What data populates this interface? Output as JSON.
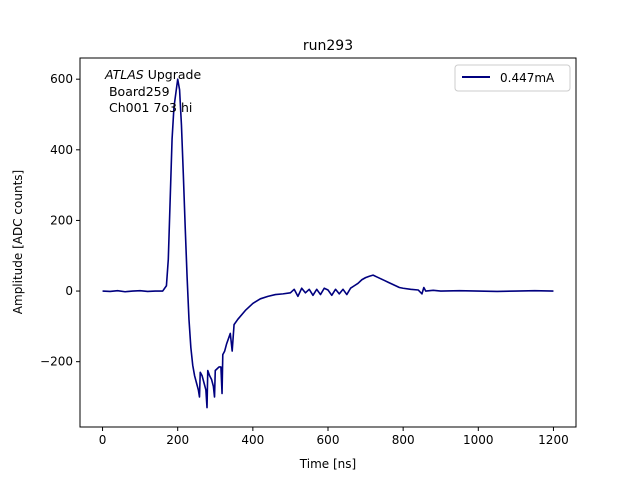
{
  "chart_data": {
    "type": "line",
    "title": "run293",
    "xlabel": "Time [ns]",
    "ylabel": "Amplitude [ADC counts]",
    "xlim": [
      -60,
      1260
    ],
    "ylim": [
      -385,
      660
    ],
    "xticks": [
      0,
      200,
      400,
      600,
      800,
      1000,
      1200
    ],
    "yticks": [
      -200,
      0,
      200,
      400,
      600
    ],
    "ytick_labels": [
      "−200",
      "0",
      "200",
      "400",
      "600"
    ],
    "grid": false,
    "legend_position": "top-right",
    "annotation": {
      "line1_italic": "ATLAS",
      "line1_rest": " Upgrade",
      "line2": " Board259",
      "line3": " Ch001 7o3 hi"
    },
    "series": [
      {
        "name": "0.447mA",
        "color": "#00007f",
        "x": [
          0,
          20,
          40,
          60,
          80,
          100,
          120,
          140,
          160,
          170,
          175,
          180,
          185,
          190,
          195,
          200,
          205,
          210,
          215,
          220,
          225,
          230,
          235,
          240,
          245,
          250,
          255,
          258,
          260,
          265,
          270,
          275,
          278,
          280,
          285,
          290,
          295,
          298,
          300,
          305,
          310,
          315,
          318,
          320,
          325,
          330,
          340,
          345,
          350,
          360,
          380,
          400,
          420,
          440,
          460,
          480,
          500,
          510,
          520,
          530,
          540,
          550,
          560,
          570,
          580,
          590,
          600,
          610,
          620,
          630,
          640,
          650,
          660,
          670,
          680,
          690,
          700,
          710,
          720,
          730,
          740,
          750,
          760,
          770,
          780,
          790,
          800,
          820,
          840,
          850,
          855,
          860,
          880,
          900,
          950,
          1000,
          1050,
          1100,
          1150,
          1200
        ],
        "y": [
          0,
          -1,
          1,
          -2,
          0,
          1,
          -1,
          0,
          0,
          15,
          90,
          260,
          430,
          520,
          560,
          600,
          570,
          470,
          330,
          180,
          40,
          -80,
          -160,
          -210,
          -240,
          -260,
          -280,
          -300,
          -230,
          -240,
          -260,
          -280,
          -330,
          -225,
          -240,
          -250,
          -270,
          -300,
          -225,
          -220,
          -215,
          -215,
          -290,
          -180,
          -170,
          -150,
          -120,
          -170,
          -95,
          -80,
          -55,
          -35,
          -22,
          -15,
          -10,
          -8,
          -5,
          5,
          -15,
          8,
          -5,
          5,
          -12,
          5,
          -10,
          8,
          3,
          -12,
          5,
          -8,
          5,
          -10,
          8,
          15,
          22,
          32,
          38,
          42,
          45,
          40,
          35,
          30,
          25,
          20,
          15,
          10,
          8,
          5,
          3,
          -8,
          10,
          0,
          2,
          0,
          1,
          0,
          -1,
          0,
          1,
          0
        ]
      }
    ]
  }
}
